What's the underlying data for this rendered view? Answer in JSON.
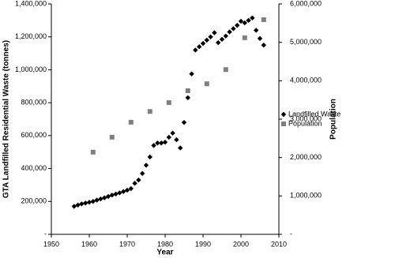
{
  "chart_data": {
    "type": "scatter",
    "x_label": "Year",
    "y_label": "GTA Landfilled Residential Waste (tonnes)",
    "y2_label": "Population",
    "xlim": [
      1950,
      2010
    ],
    "xticks": [
      1950,
      1960,
      1970,
      1980,
      1990,
      2000,
      2010
    ],
    "ylim": [
      0,
      1400000
    ],
    "yticks": [
      {
        "value": 0,
        "label": "-"
      },
      {
        "value": 200000,
        "label": "200,000"
      },
      {
        "value": 400000,
        "label": "400,000"
      },
      {
        "value": 600000,
        "label": "600,000"
      },
      {
        "value": 800000,
        "label": "800,000"
      },
      {
        "value": 1000000,
        "label": "1,000,000"
      },
      {
        "value": 1200000,
        "label": "1,200,000"
      },
      {
        "value": 1400000,
        "label": "1,400,000"
      }
    ],
    "y2lim": [
      0,
      6000000
    ],
    "y2ticks": [
      {
        "value": 0,
        "label": "-"
      },
      {
        "value": 1000000,
        "label": "1,000,000"
      },
      {
        "value": 2000000,
        "label": "2,000,000"
      },
      {
        "value": 3000000,
        "label": "3,000,000"
      },
      {
        "value": 4000000,
        "label": "4,000,000"
      },
      {
        "value": 5000000,
        "label": "5,000,000"
      },
      {
        "value": 6000000,
        "label": "6,000,000"
      }
    ],
    "legend": "right",
    "series": [
      {
        "name": "Landfilled Waste",
        "color": "#000000",
        "marker": "diamond",
        "x": [
          1956,
          1957,
          1958,
          1959,
          1960,
          1961,
          1962,
          1963,
          1964,
          1965,
          1966,
          1967,
          1968,
          1969,
          1970,
          1971,
          1972,
          1973,
          1974,
          1975,
          1976,
          1977,
          1978,
          1979,
          1980,
          1981,
          1982,
          1983,
          1984,
          1985,
          1986,
          1987,
          1988,
          1989,
          1990,
          1991,
          1992,
          1993,
          1994,
          1995,
          1996,
          1997,
          1998,
          1999,
          2000,
          2001,
          2002,
          2003,
          2004,
          2005,
          2006
        ],
        "values": [
          170000,
          178000,
          185000,
          190000,
          195000,
          200000,
          208000,
          215000,
          222000,
          230000,
          238000,
          245000,
          252000,
          260000,
          268000,
          278000,
          310000,
          330000,
          370000,
          420000,
          470000,
          540000,
          555000,
          555000,
          560000,
          590000,
          615000,
          575000,
          525000,
          680000,
          830000,
          975000,
          1120000,
          1140000,
          1160000,
          1180000,
          1200000,
          1225000,
          1165000,
          1185000,
          1205000,
          1230000,
          1250000,
          1270000,
          1295000,
          1285000,
          1300000,
          1315000,
          1240000,
          1190000,
          1150000
        ]
      },
      {
        "name": "Population",
        "color": "#808080",
        "marker": "square",
        "axis": "y2",
        "x": [
          1961,
          1966,
          1971,
          1976,
          1981,
          1986,
          1991,
          1996,
          2001,
          2006
        ],
        "values": [
          2140000,
          2530000,
          2920000,
          3200000,
          3430000,
          3740000,
          3920000,
          4290000,
          5120000,
          5590000
        ]
      }
    ]
  }
}
